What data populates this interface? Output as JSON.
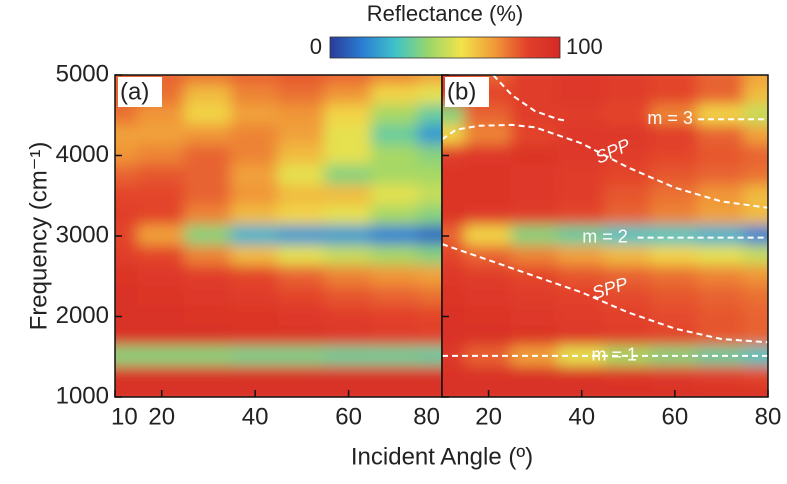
{
  "colorbar": {
    "title": "Reflectance (%)",
    "lim": [
      0,
      100
    ],
    "ticks": [
      0,
      100
    ],
    "colorscale": [
      "#2b3a9a",
      "#2a7fd4",
      "#3fc3c9",
      "#9ad66a",
      "#f2e34a",
      "#f19a38",
      "#e2402b",
      "#d42a25"
    ]
  },
  "xlabel": "Incident Angle (º)",
  "ylabel": "Frequency (cm⁻¹)",
  "chart_data": [
    {
      "type": "heatmap",
      "panel_label": "(a)",
      "x": [
        10,
        20,
        30,
        40,
        50,
        60,
        70,
        80
      ],
      "y": [
        5000,
        4750,
        4500,
        4250,
        4000,
        3750,
        3500,
        3250,
        3000,
        2750,
        2500,
        2250,
        2000,
        1750,
        1500,
        1250,
        1000
      ],
      "values": [
        [
          80,
          80,
          78,
          80,
          82,
          80,
          75,
          70
        ],
        [
          80,
          78,
          65,
          75,
          78,
          72,
          60,
          55
        ],
        [
          78,
          72,
          60,
          70,
          72,
          60,
          45,
          35
        ],
        [
          70,
          70,
          72,
          75,
          70,
          55,
          35,
          20
        ],
        [
          72,
          75,
          80,
          75,
          65,
          55,
          45,
          40
        ],
        [
          80,
          82,
          80,
          70,
          55,
          40,
          45,
          45
        ],
        [
          85,
          85,
          80,
          72,
          65,
          65,
          55,
          50
        ],
        [
          88,
          85,
          75,
          65,
          60,
          55,
          45,
          40
        ],
        [
          85,
          70,
          40,
          25,
          20,
          20,
          15,
          10
        ],
        [
          88,
          85,
          75,
          65,
          55,
          50,
          45,
          40
        ],
        [
          92,
          90,
          88,
          85,
          80,
          75,
          72,
          70
        ],
        [
          95,
          92,
          90,
          88,
          85,
          82,
          80,
          78
        ],
        [
          95,
          95,
          93,
          92,
          90,
          88,
          86,
          85
        ],
        [
          95,
          95,
          95,
          93,
          92,
          90,
          88,
          86
        ],
        [
          40,
          40,
          40,
          38,
          38,
          36,
          36,
          35
        ],
        [
          95,
          95,
          95,
          95,
          95,
          95,
          95,
          95
        ],
        [
          95,
          95,
          95,
          95,
          95,
          95,
          95,
          95
        ]
      ],
      "xlim": [
        10,
        80
      ],
      "ylim": [
        1000,
        5000
      ],
      "xticks": [
        10,
        20,
        40,
        60,
        80
      ],
      "yticks": [
        1000,
        2000,
        3000,
        4000,
        5000
      ]
    },
    {
      "type": "heatmap",
      "panel_label": "(b)",
      "x": [
        10,
        20,
        30,
        40,
        50,
        60,
        70,
        80
      ],
      "y": [
        5000,
        4750,
        4500,
        4250,
        4000,
        3750,
        3500,
        3250,
        3000,
        2750,
        2500,
        2250,
        2000,
        1750,
        1500,
        1250,
        1000
      ],
      "values": [
        [
          85,
          80,
          88,
          90,
          88,
          85,
          80,
          70
        ],
        [
          88,
          85,
          88,
          90,
          88,
          85,
          80,
          65
        ],
        [
          40,
          80,
          88,
          88,
          85,
          75,
          60,
          50
        ],
        [
          60,
          75,
          85,
          90,
          90,
          88,
          80,
          70
        ],
        [
          88,
          90,
          92,
          90,
          88,
          85,
          82,
          80
        ],
        [
          92,
          92,
          90,
          88,
          85,
          82,
          80,
          78
        ],
        [
          92,
          92,
          90,
          88,
          82,
          78,
          72,
          65
        ],
        [
          92,
          90,
          88,
          85,
          80,
          75,
          70,
          65
        ],
        [
          80,
          60,
          40,
          35,
          30,
          30,
          25,
          15
        ],
        [
          85,
          80,
          75,
          70,
          65,
          60,
          55,
          50
        ],
        [
          90,
          88,
          85,
          82,
          80,
          78,
          75,
          72
        ],
        [
          92,
          90,
          88,
          86,
          84,
          82,
          80,
          78
        ],
        [
          95,
          92,
          90,
          88,
          86,
          84,
          82,
          80
        ],
        [
          95,
          95,
          93,
          90,
          88,
          85,
          82,
          80
        ],
        [
          90,
          80,
          70,
          55,
          45,
          40,
          35,
          30
        ],
        [
          95,
          95,
          95,
          95,
          92,
          90,
          88,
          85
        ],
        [
          95,
          95,
          95,
          95,
          95,
          95,
          95,
          95
        ]
      ],
      "xlim": [
        10,
        80
      ],
      "ylim": [
        1000,
        5000
      ],
      "xticks": [
        20,
        40,
        60,
        80
      ],
      "yticks": [
        1000,
        2000,
        3000,
        4000,
        5000
      ],
      "curves": [
        {
          "name": "m = 1",
          "x": [
            10,
            80
          ],
          "y": [
            1510,
            1510
          ]
        },
        {
          "name": "m = 2",
          "x": [
            52,
            80
          ],
          "y": [
            2980,
            2980
          ]
        },
        {
          "name": "m = 3",
          "x": [
            65,
            80
          ],
          "y": [
            4450,
            4450
          ]
        },
        {
          "name": "SPP",
          "x": [
            10,
            20,
            30,
            40,
            50,
            60,
            70,
            80
          ],
          "y": [
            2900,
            2700,
            2500,
            2300,
            2050,
            1850,
            1720,
            1680
          ]
        },
        {
          "name": "SPP",
          "x": [
            10,
            13,
            18,
            25,
            30,
            40,
            50,
            60,
            70,
            80
          ],
          "y": [
            4200,
            4320,
            4370,
            4380,
            4350,
            4150,
            3850,
            3600,
            3430,
            3350
          ]
        },
        {
          "x": [
            21,
            25,
            30,
            35,
            37
          ],
          "y": [
            5000,
            4750,
            4550,
            4450,
            4430
          ]
        }
      ]
    }
  ]
}
